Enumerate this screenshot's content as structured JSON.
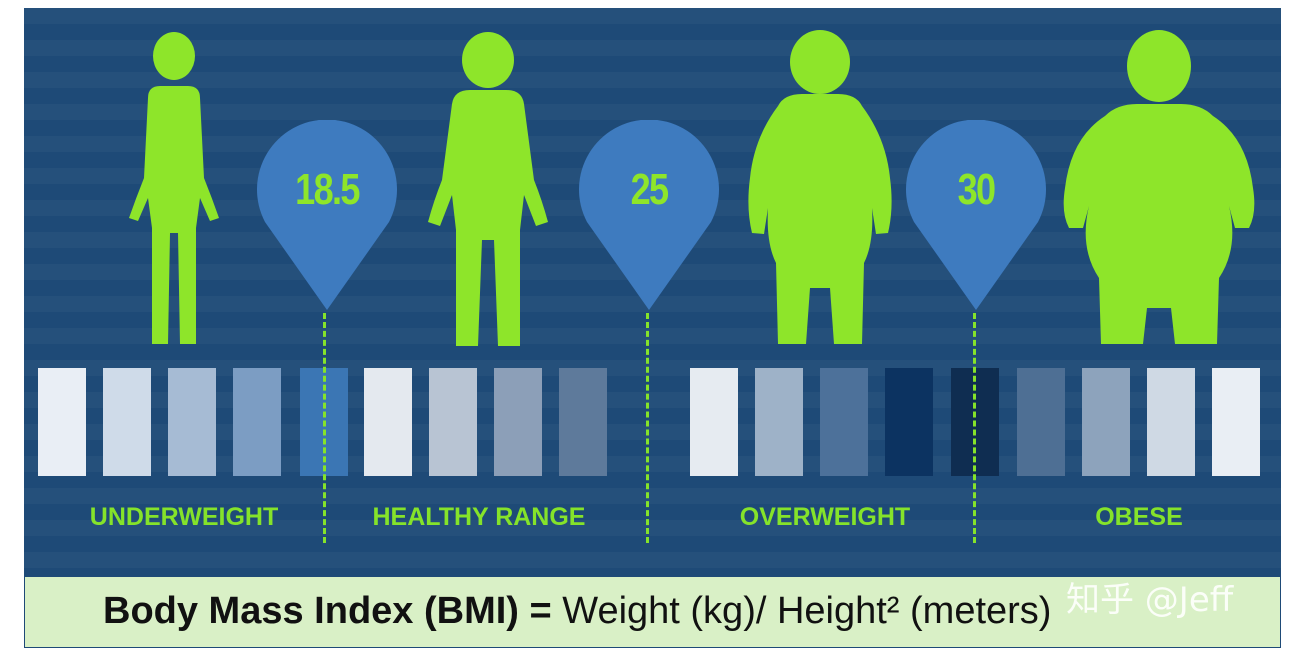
{
  "colors": {
    "panel_bg": "#1e4a77",
    "figure_green": "#8ee52a",
    "pin_blue": "#3e7bbf",
    "label_green": "#85e32a",
    "formula_bg": "#d9f0c6"
  },
  "thresholds": [
    {
      "value": "18.5"
    },
    {
      "value": "25"
    },
    {
      "value": "30"
    }
  ],
  "categories": [
    {
      "label": "UNDERWEIGHT"
    },
    {
      "label": "HEALTHY RANGE"
    },
    {
      "label": "OVERWEIGHT"
    },
    {
      "label": "OBESE"
    }
  ],
  "figures": [
    "underweight-figure",
    "healthy-figure",
    "overweight-figure",
    "obese-figure"
  ],
  "tiles": [
    "#e9eef5",
    "#cfdbe9",
    "#a6bbd4",
    "#7c9dc3",
    "#3b76b4",
    "#e4e9ef",
    "#b8c4d3",
    "#8c9fb8",
    "#5e7a9b",
    "#e6ebf1",
    "#9eb2c8",
    "#4d719a",
    "#0c3361",
    "#0f2d51",
    "#4e6f94",
    "#8da3bc",
    "#cfd9e4",
    "#e9eef4"
  ],
  "formula": {
    "bold": "Body Mass Index (BMI) =",
    "rest": "Weight (kg)/ Height² (meters)"
  },
  "watermark": "知乎 @Jeff"
}
